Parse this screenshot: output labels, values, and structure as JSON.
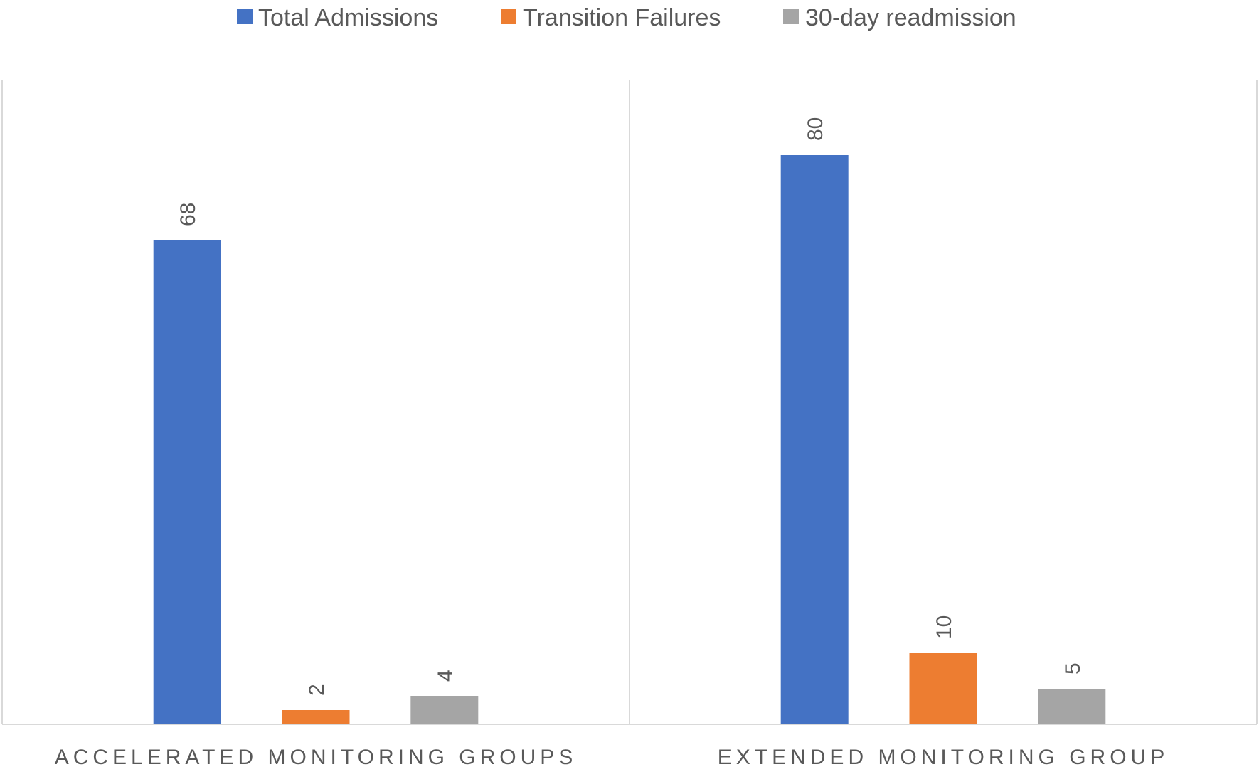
{
  "chart_data": {
    "type": "bar",
    "title": "",
    "xlabel": "",
    "ylabel": "",
    "categories": [
      "ACCELERATED MONITORING GROUPS",
      "EXTENDED MONITORING GROUP"
    ],
    "series": [
      {
        "name": "Total Admissions",
        "values": [
          68,
          80
        ],
        "color": "#4472C4"
      },
      {
        "name": "Transition Failures",
        "values": [
          2,
          10
        ],
        "color": "#ED7D31"
      },
      {
        "name": "30-day readmission",
        "values": [
          4,
          5
        ],
        "color": "#A5A5A5"
      }
    ],
    "ylim": [
      0,
      90
    ],
    "grid": false,
    "legend": "top-center",
    "data_labels": true,
    "data_label_rotation": "vertical",
    "category_separators": true
  }
}
